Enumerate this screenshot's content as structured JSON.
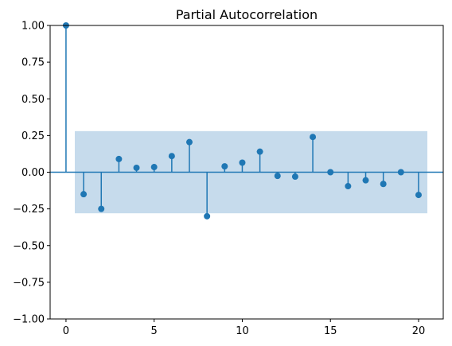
{
  "chart_data": {
    "type": "stem",
    "title": "Partial Autocorrelation",
    "xlabel": "",
    "ylabel": "",
    "xlim": [
      -0.9,
      21.4
    ],
    "ylim": [
      -1.0,
      1.0
    ],
    "x_ticks": [
      0,
      5,
      10,
      15,
      20
    ],
    "x_tick_labels": [
      "0",
      "5",
      "10",
      "15",
      "20"
    ],
    "y_ticks": [
      -1.0,
      -0.75,
      -0.5,
      -0.25,
      0.0,
      0.25,
      0.5,
      0.75,
      1.0
    ],
    "y_tick_labels": [
      "−1.00",
      "−0.75",
      "−0.50",
      "−0.25",
      "0.00",
      "0.25",
      "0.50",
      "0.75",
      "1.00"
    ],
    "lags": [
      0,
      1,
      2,
      3,
      4,
      5,
      6,
      7,
      8,
      9,
      10,
      11,
      12,
      13,
      14,
      15,
      16,
      17,
      18,
      19,
      20
    ],
    "values": [
      1.0,
      -0.15,
      -0.25,
      0.09,
      0.03,
      0.035,
      0.11,
      0.205,
      -0.3,
      0.04,
      0.065,
      0.14,
      -0.025,
      -0.03,
      0.24,
      0.0,
      -0.095,
      -0.055,
      -0.08,
      0.0,
      -0.155
    ],
    "confidence_band": {
      "x_range": [
        0.5,
        20.5
      ],
      "lower": -0.28,
      "upper": 0.28
    },
    "grid": false,
    "colors": {
      "stem": "#1f77b4",
      "band": "#c6dbec",
      "zero_line": "#1f77b4"
    }
  }
}
